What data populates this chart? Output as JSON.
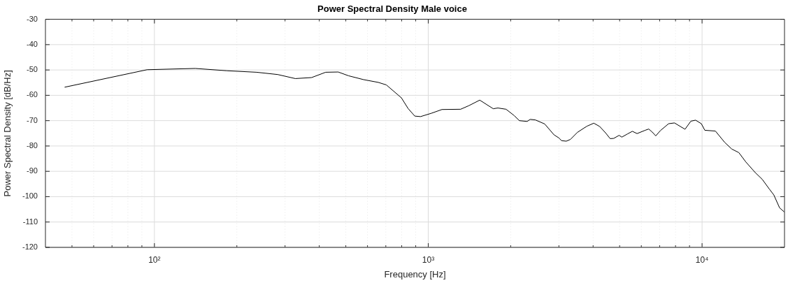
{
  "chart_data": {
    "type": "line",
    "title": "Power Spectral Density Male voice",
    "xlabel": "Frequency [Hz]",
    "ylabel": "Power Spectral Density [dB/Hz]",
    "log": "x",
    "grid": true,
    "legend": false,
    "marker": "none",
    "line_style": "solid",
    "xlim": [
      40,
      20000
    ],
    "xticks": [
      {
        "value": 50,
        "label": null
      },
      {
        "value": 60,
        "label": null
      },
      {
        "value": 70,
        "label": null
      },
      {
        "value": 80,
        "label": null
      },
      {
        "value": 90,
        "label": null
      },
      {
        "value": 100,
        "label": "10²"
      },
      {
        "value": 200,
        "label": null
      },
      {
        "value": 300,
        "label": null
      },
      {
        "value": 400,
        "label": null
      },
      {
        "value": 500,
        "label": null
      },
      {
        "value": 600,
        "label": null
      },
      {
        "value": 700,
        "label": null
      },
      {
        "value": 800,
        "label": null
      },
      {
        "value": 900,
        "label": null
      },
      {
        "value": 1000,
        "label": "10³"
      },
      {
        "value": 2000,
        "label": null
      },
      {
        "value": 3000,
        "label": null
      },
      {
        "value": 4000,
        "label": null
      },
      {
        "value": 5000,
        "label": null
      },
      {
        "value": 6000,
        "label": null
      },
      {
        "value": 7000,
        "label": null
      },
      {
        "value": 8000,
        "label": null
      },
      {
        "value": 9000,
        "label": null
      },
      {
        "value": 10000,
        "label": "10⁴"
      }
    ],
    "ylim": [
      -120,
      -30
    ],
    "yticks": [
      -120,
      -110,
      -100,
      -90,
      -80,
      -70,
      -60,
      -50,
      -40,
      -30
    ],
    "series": [
      {
        "color": "#000000",
        "x": [
          47,
          94,
          141,
          184,
          236,
          282,
          327,
          375,
          422,
          469,
          512,
          580,
          657,
          703,
          798,
          844,
          893,
          937,
          1026,
          1122,
          1313,
          1406,
          1542,
          1727,
          1796,
          1924,
          2060,
          2152,
          2297,
          2356,
          2460,
          2662,
          2880,
          2997,
          3069,
          3192,
          3306,
          3507,
          3796,
          4024,
          4227,
          4440,
          4618,
          4757,
          4977,
          5093,
          5350,
          5563,
          5789,
          6199,
          6384,
          6577,
          6775,
          7046,
          7549,
          7930,
          8663,
          9102,
          9466,
          9938,
          10236,
          11187,
          12102,
          12837,
          13620,
          14450,
          15640,
          16570,
          17580,
          18280,
          19190,
          19950
        ],
        "values": [
          -56.8,
          -49.9,
          -49.4,
          -50.3,
          -50.9,
          -51.8,
          -53.4,
          -53.0,
          -50.9,
          -50.8,
          -52.3,
          -53.8,
          -54.9,
          -55.9,
          -61.0,
          -65.2,
          -68.2,
          -68.4,
          -67.1,
          -65.6,
          -65.5,
          -64.1,
          -61.9,
          -65.3,
          -65.0,
          -65.5,
          -68.0,
          -70.0,
          -70.3,
          -69.5,
          -69.7,
          -71.3,
          -75.6,
          -76.8,
          -77.9,
          -78.1,
          -77.4,
          -74.6,
          -72.2,
          -71.0,
          -72.3,
          -74.8,
          -77.1,
          -77.0,
          -75.8,
          -76.5,
          -75.2,
          -74.2,
          -75.1,
          -73.8,
          -73.3,
          -74.5,
          -76.0,
          -73.9,
          -71.2,
          -70.9,
          -73.4,
          -70.2,
          -69.8,
          -71.2,
          -73.8,
          -74.1,
          -78.6,
          -81.2,
          -82.6,
          -86.3,
          -90.5,
          -93.1,
          -96.9,
          -99.3,
          -104.4,
          -106.0
        ]
      }
    ]
  }
}
